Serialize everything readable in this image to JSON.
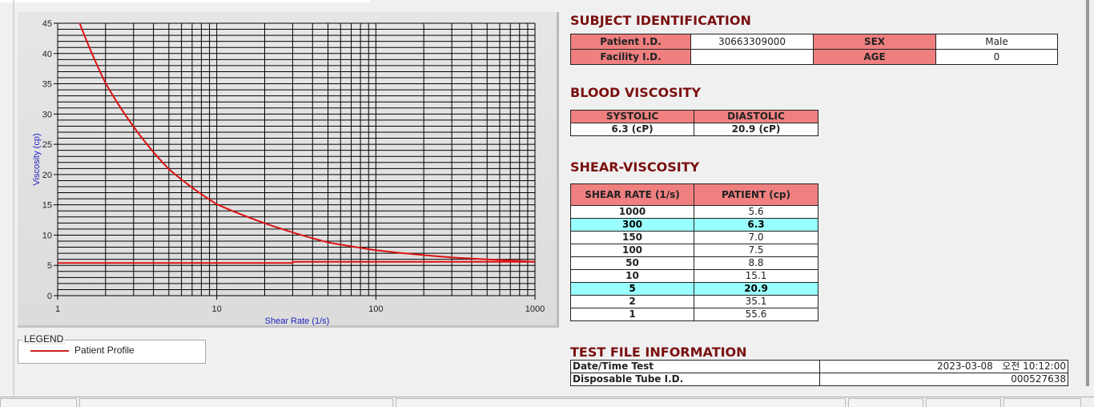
{
  "chart_data": {
    "type": "line",
    "xlabel": "Shear Rate (1/s)",
    "ylabel": "Viscosity (cp)",
    "x_scale": "log",
    "xlim": [
      1,
      1000
    ],
    "ylim": [
      0,
      45
    ],
    "x_ticks": [
      "1",
      "10",
      "100",
      "1000"
    ],
    "y_ticks": [
      "0",
      "5",
      "10",
      "15",
      "20",
      "25",
      "30",
      "35",
      "40",
      "45"
    ],
    "grid": true,
    "series": [
      {
        "name": "Patient Profile",
        "color": "#dd1111",
        "x": [
          1,
          2,
          5,
          10,
          50,
          100,
          150,
          300,
          1000
        ],
        "y": [
          55.6,
          35.1,
          20.9,
          15.1,
          8.8,
          7.5,
          7.0,
          6.3,
          5.6
        ]
      },
      {
        "color": "#dd1111",
        "x": [
          1,
          30,
          30,
          1000
        ],
        "y": [
          5.4,
          5.4,
          5.6,
          5.6
        ]
      }
    ]
  },
  "legend": {
    "title": "LEGEND",
    "items": [
      "Patient Profile"
    ]
  },
  "subject": {
    "title": "SUBJECT IDENTIFICATION",
    "patient_id_label": "Patient I.D.",
    "patient_id": "30663309000",
    "sex_label": "SEX",
    "sex": "Male",
    "facility_id_label": "Facility I.D.",
    "facility_id": "",
    "age_label": "AGE",
    "age": "0"
  },
  "blood": {
    "title": "BLOOD VISCOSITY",
    "systolic_label": "SYSTOLIC",
    "diastolic_label": "DIASTOLIC",
    "systolic": "6.3 (cP)",
    "diastolic": "20.9 (cP)"
  },
  "shear": {
    "title": "SHEAR-VISCOSITY",
    "col1": "SHEAR RATE (1/s)",
    "col2": "PATIENT (cp)",
    "rows": [
      {
        "rate": "1000",
        "value": "5.6",
        "highlight": false
      },
      {
        "rate": "300",
        "value": "6.3",
        "highlight": true
      },
      {
        "rate": "150",
        "value": "7.0",
        "highlight": false
      },
      {
        "rate": "100",
        "value": "7.5",
        "highlight": false
      },
      {
        "rate": "50",
        "value": "8.8",
        "highlight": false
      },
      {
        "rate": "10",
        "value": "15.1",
        "highlight": false
      },
      {
        "rate": "5",
        "value": "20.9",
        "highlight": true
      },
      {
        "rate": "2",
        "value": "35.1",
        "highlight": false
      },
      {
        "rate": "1",
        "value": "55.6",
        "highlight": false
      }
    ],
    "highlight_color": "#99ffff"
  },
  "testfile": {
    "title": "TEST FILE INFORMATION",
    "date_label": "Date/Time Test",
    "date": "2023-03-08   오전 10:12:00",
    "tube_label": "Disposable Tube I.D.",
    "tube": "000527638"
  }
}
